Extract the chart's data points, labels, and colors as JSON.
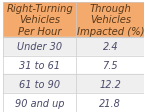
{
  "header_col1": [
    "Right-Turning",
    "Vehicles",
    "Per Hour"
  ],
  "header_col2": [
    "Through",
    "Vehicles",
    "Impacted (%)"
  ],
  "rows": [
    [
      "Under 30",
      "2.4"
    ],
    [
      "31 to 61",
      "7.5"
    ],
    [
      "61 to 90",
      "12.2"
    ],
    [
      "90 and up",
      "21.8"
    ]
  ],
  "header_bg": "#F4A96D",
  "row_bg_odd": "#EFEFEF",
  "row_bg_even": "#FFFFFF",
  "header_text_color": "#5A3A1A",
  "row_text_color": "#4A4A6A",
  "font_size_header": 7.2,
  "font_size_row": 7.0,
  "border_color": "#CCCCCC"
}
